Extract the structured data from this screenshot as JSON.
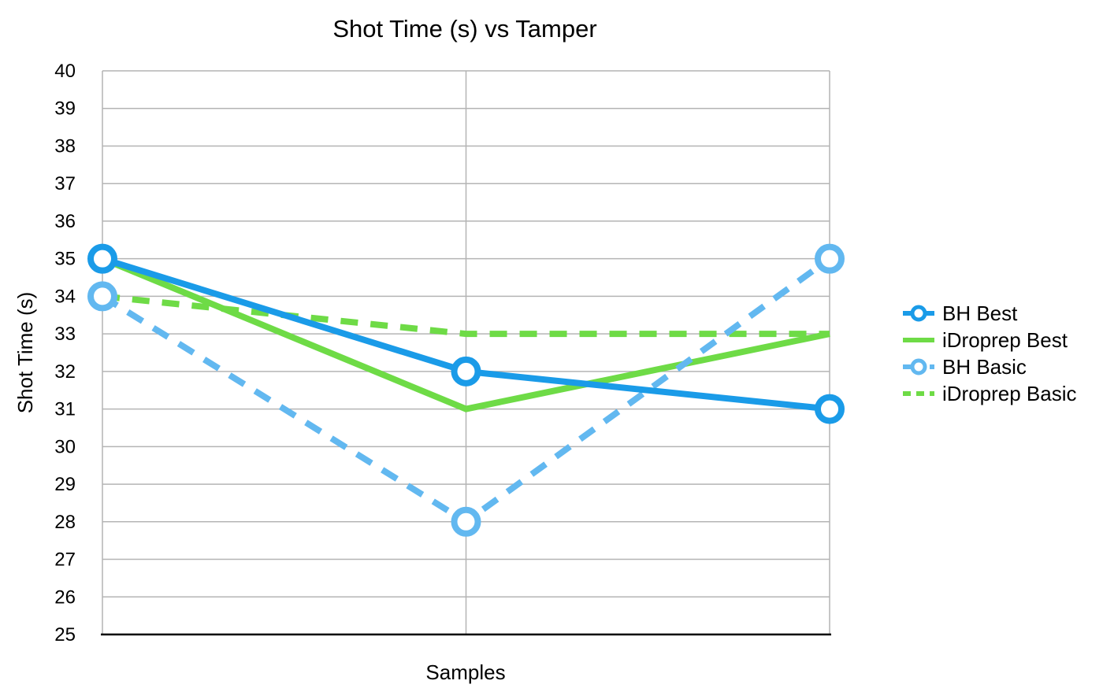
{
  "chart_data": {
    "type": "line",
    "title": "Shot Time (s) vs Tamper",
    "xlabel": "Samples",
    "ylabel": "Shot Time (s)",
    "ylim": [
      25,
      40
    ],
    "ytick_step": 1,
    "x": [
      1,
      2,
      3
    ],
    "grid": true,
    "legend_position": "right",
    "series": [
      {
        "name": "BH Best",
        "values": [
          35,
          32,
          31
        ],
        "color": "#1a9be8",
        "dashed": false,
        "markers": true
      },
      {
        "name": "iDroprep Best",
        "values": [
          35,
          31,
          33
        ],
        "color": "#6edb46",
        "dashed": false,
        "markers": false
      },
      {
        "name": "BH Basic",
        "values": [
          34,
          28,
          35
        ],
        "color": "#62b8f0",
        "dashed": true,
        "markers": true
      },
      {
        "name": "iDroprep Basic",
        "values": [
          34,
          33,
          33
        ],
        "color": "#6edb46",
        "dashed": true,
        "markers": false
      }
    ]
  }
}
